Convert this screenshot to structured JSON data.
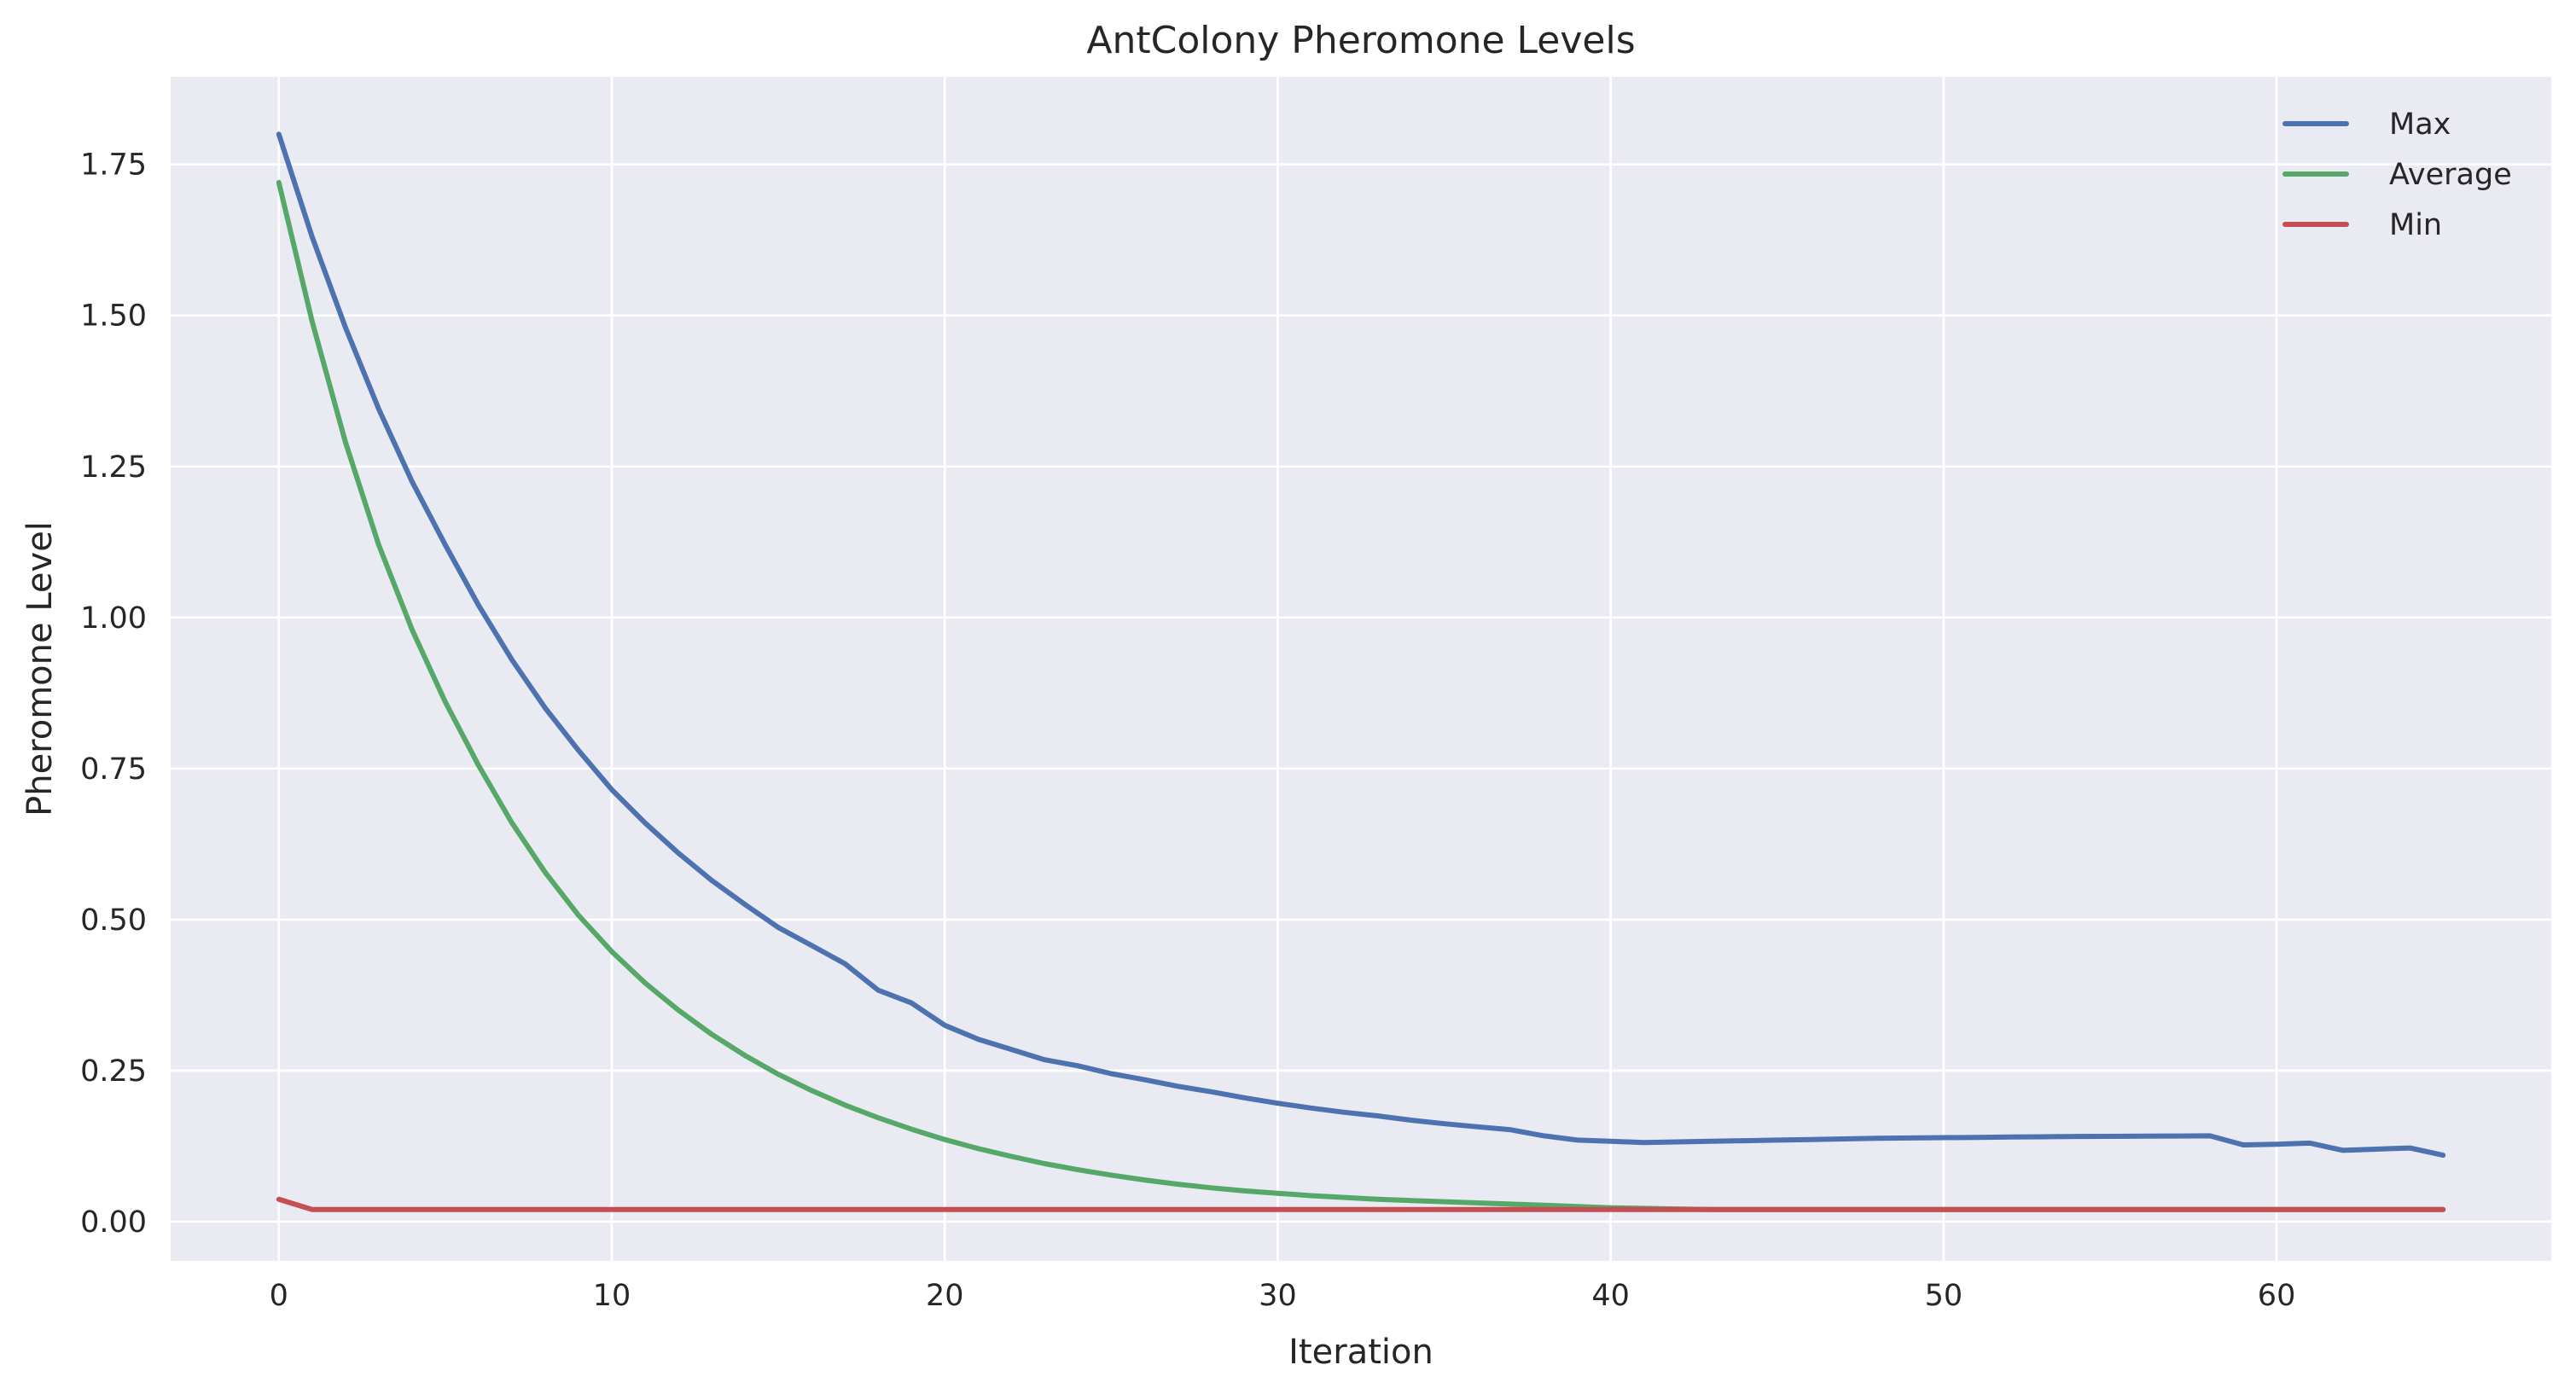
{
  "chart_data": {
    "type": "line",
    "title": "AntColony Pheromone Levels",
    "xlabel": "Iteration",
    "ylabel": "Pheromone Level",
    "xlim": [
      -3.25,
      68.25
    ],
    "ylim": [
      -0.065,
      1.895
    ],
    "xticks": [
      0,
      10,
      20,
      30,
      40,
      50,
      60
    ],
    "xtick_labels": [
      "0",
      "10",
      "20",
      "30",
      "40",
      "50",
      "60"
    ],
    "yticks": [
      0.0,
      0.25,
      0.5,
      0.75,
      1.0,
      1.25,
      1.5,
      1.75
    ],
    "ytick_labels": [
      "0.00",
      "0.25",
      "0.50",
      "0.75",
      "1.00",
      "1.25",
      "1.50",
      "1.75"
    ],
    "grid": true,
    "legend_position": "top-right",
    "x": [
      0,
      1,
      2,
      3,
      4,
      5,
      6,
      7,
      8,
      9,
      10,
      11,
      12,
      13,
      14,
      15,
      16,
      17,
      18,
      19,
      20,
      21,
      22,
      23,
      24,
      25,
      26,
      27,
      28,
      29,
      30,
      31,
      32,
      33,
      34,
      35,
      36,
      37,
      38,
      39,
      40,
      41,
      42,
      43,
      44,
      45,
      46,
      47,
      48,
      49,
      50,
      51,
      52,
      53,
      54,
      55,
      56,
      57,
      58,
      59,
      60,
      61,
      62,
      63,
      64,
      65
    ],
    "series": [
      {
        "name": "Max",
        "color": "#4c72b0",
        "values": [
          1.8,
          1.63,
          1.48,
          1.345,
          1.225,
          1.12,
          1.02,
          0.93,
          0.85,
          0.78,
          0.715,
          0.66,
          0.61,
          0.565,
          0.525,
          0.487,
          0.457,
          0.427,
          0.383,
          0.362,
          0.325,
          0.302,
          0.285,
          0.268,
          0.258,
          0.245,
          0.235,
          0.224,
          0.215,
          0.205,
          0.196,
          0.188,
          0.181,
          0.175,
          0.168,
          0.162,
          0.157,
          0.152,
          0.142,
          0.135,
          0.133,
          0.131,
          0.132,
          0.133,
          0.134,
          0.135,
          0.136,
          0.137,
          0.138,
          0.1385,
          0.139,
          0.1395,
          0.14,
          0.1405,
          0.141,
          0.1412,
          0.1415,
          0.1418,
          0.142,
          0.127,
          0.128,
          0.13,
          0.118,
          0.12,
          0.122,
          0.11
        ]
      },
      {
        "name": "Average",
        "color": "#55a868",
        "values": [
          1.72,
          1.49,
          1.29,
          1.12,
          0.98,
          0.86,
          0.755,
          0.66,
          0.578,
          0.507,
          0.447,
          0.395,
          0.35,
          0.31,
          0.275,
          0.244,
          0.217,
          0.193,
          0.172,
          0.153,
          0.136,
          0.121,
          0.108,
          0.096,
          0.086,
          0.077,
          0.069,
          0.062,
          0.056,
          0.051,
          0.047,
          0.043,
          0.04,
          0.037,
          0.035,
          0.033,
          0.031,
          0.029,
          0.027,
          0.025,
          0.023,
          0.022,
          0.021,
          0.02,
          0.02,
          0.02,
          0.02,
          0.02,
          0.02,
          0.02,
          0.02,
          0.02,
          0.02,
          0.02,
          0.02,
          0.02,
          0.02,
          0.02,
          0.02,
          0.02,
          0.02,
          0.02,
          0.02,
          0.02,
          0.02,
          0.02
        ]
      },
      {
        "name": "Min",
        "color": "#c44e52",
        "values": [
          0.037,
          0.02,
          0.02,
          0.02,
          0.02,
          0.02,
          0.02,
          0.02,
          0.02,
          0.02,
          0.02,
          0.02,
          0.02,
          0.02,
          0.02,
          0.02,
          0.02,
          0.02,
          0.02,
          0.02,
          0.02,
          0.02,
          0.02,
          0.02,
          0.02,
          0.02,
          0.02,
          0.02,
          0.02,
          0.02,
          0.02,
          0.02,
          0.02,
          0.02,
          0.02,
          0.02,
          0.02,
          0.02,
          0.02,
          0.02,
          0.02,
          0.02,
          0.02,
          0.02,
          0.02,
          0.02,
          0.02,
          0.02,
          0.02,
          0.02,
          0.02,
          0.02,
          0.02,
          0.02,
          0.02,
          0.02,
          0.02,
          0.02,
          0.02,
          0.02,
          0.02,
          0.02,
          0.02,
          0.02,
          0.02,
          0.02
        ]
      }
    ]
  }
}
